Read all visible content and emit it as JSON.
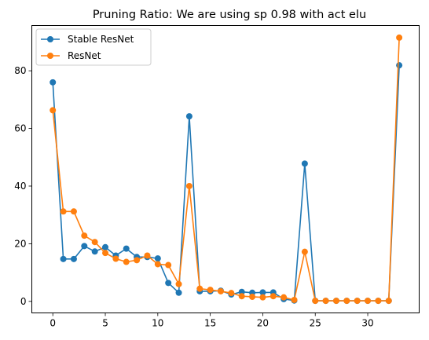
{
  "chart_data": {
    "type": "line",
    "title": "Pruning Ratio: We are using sp 0.98 with act elu",
    "xlabel": "",
    "ylabel": "",
    "xlim": [
      -2.0,
      34.9
    ],
    "ylim": [
      -4.0,
      95.7
    ],
    "xticks": [
      0,
      5,
      10,
      15,
      20,
      25,
      30
    ],
    "yticks": [
      0,
      20,
      40,
      60,
      80
    ],
    "grid": false,
    "legend_position": "top-left",
    "x": [
      0,
      1,
      2,
      3,
      4,
      5,
      6,
      7,
      8,
      9,
      10,
      11,
      12,
      13,
      14,
      15,
      16,
      17,
      18,
      19,
      20,
      21,
      22,
      23,
      24,
      25,
      26,
      27,
      28,
      29,
      30,
      31,
      32,
      33
    ],
    "series": [
      {
        "name": "Stable ResNet",
        "color": "#1f77b4",
        "values": [
          76.0,
          14.7,
          14.7,
          19.2,
          17.3,
          18.8,
          15.9,
          18.3,
          15.4,
          15.4,
          14.9,
          6.4,
          3.0,
          64.2,
          3.5,
          3.5,
          3.7,
          2.4,
          3.3,
          3.0,
          3.1,
          3.1,
          0.8,
          0.3,
          47.8,
          0.2,
          0.2,
          0.2,
          0.2,
          0.2,
          0.2,
          0.2,
          0.2,
          81.9
        ]
      },
      {
        "name": "ResNet",
        "color": "#ff7f0e",
        "values": [
          66.3,
          31.2,
          31.2,
          22.8,
          20.6,
          16.8,
          14.8,
          13.7,
          14.3,
          15.9,
          12.9,
          12.6,
          6.0,
          40.0,
          4.4,
          4.0,
          3.5,
          2.9,
          1.8,
          1.6,
          1.4,
          1.8,
          1.4,
          0.5,
          17.2,
          0.2,
          0.2,
          0.2,
          0.2,
          0.2,
          0.2,
          0.2,
          0.2,
          91.5
        ]
      }
    ]
  }
}
